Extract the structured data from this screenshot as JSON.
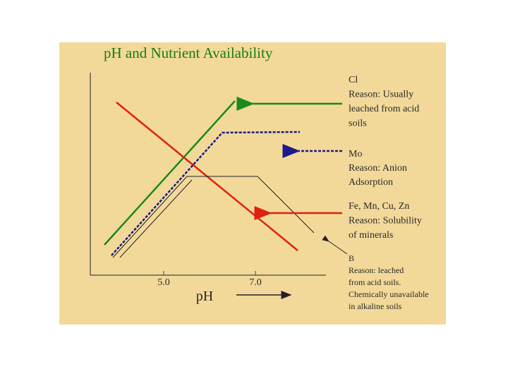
{
  "title": "pH and Nutrient Availability",
  "x_axis": {
    "label": "pH",
    "ticks": [
      "5.0",
      "7.0"
    ]
  },
  "annotations": [
    {
      "lines": [
        "Cl",
        "Reason: Usually",
        "leached from acid",
        "soils"
      ]
    },
    {
      "lines": [
        "Mo",
        "Reason:  Anion",
        "Adsorption"
      ]
    },
    {
      "lines": [
        "Fe, Mn, Cu, Zn",
        "Reason:  Solubility",
        "of minerals"
      ]
    },
    {
      "lines": [
        "B",
        "Reason: leached",
        "from acid soils.",
        "Chemically unavailable",
        "in alkaline soils"
      ]
    }
  ]
}
